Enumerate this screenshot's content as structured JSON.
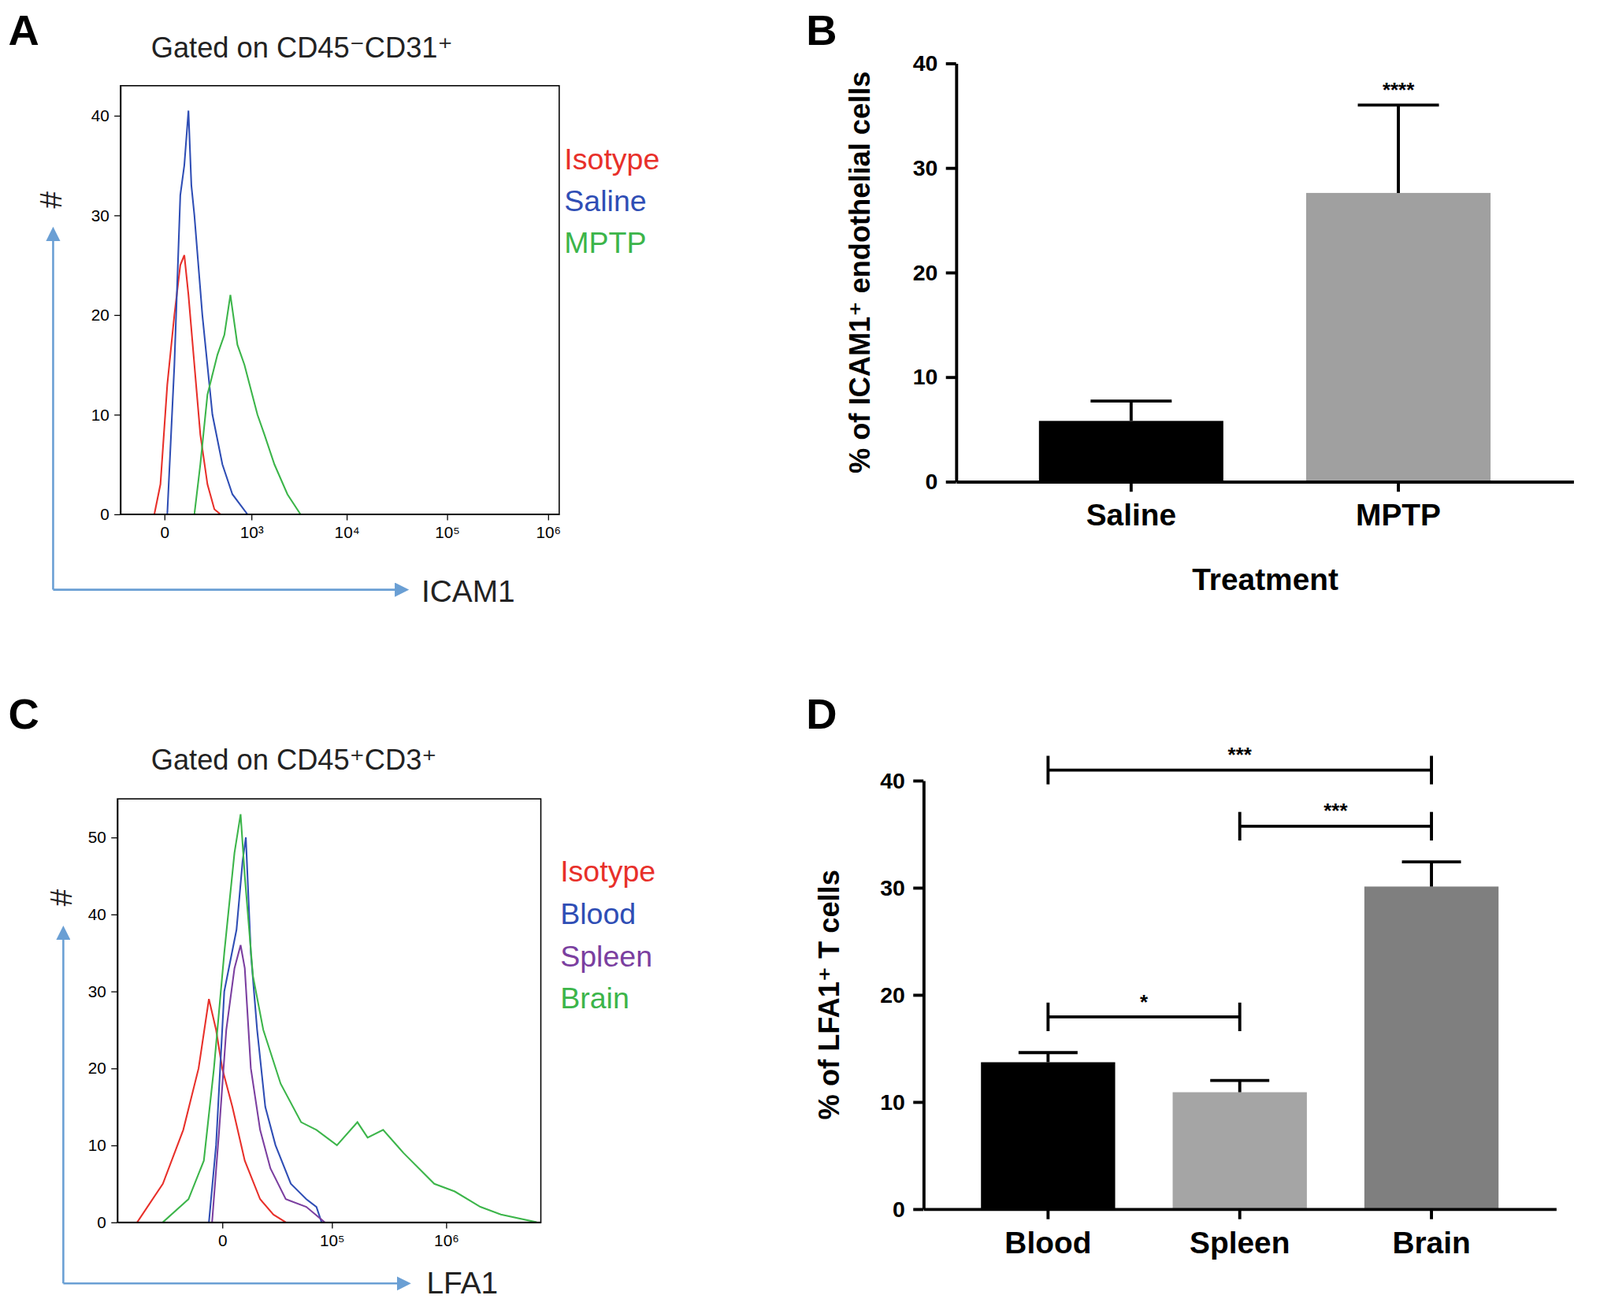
{
  "chart_data": [
    {
      "type": "line",
      "annotations": [
        "A"
      ],
      "title": "Gated on CD45⁻CD31⁺",
      "xlabel": "ICAM1",
      "ylabel": "#",
      "log": "x",
      "legend": "right",
      "xlim": [
        -275,
        1290000
      ],
      "ylim": [
        0,
        43
      ],
      "xticks": [
        0,
        {
          "value": 1000,
          "label": "10³"
        },
        {
          "value": 10000,
          "label": "10⁴"
        },
        {
          "value": 100000,
          "label": "10⁵"
        },
        {
          "value": 1000000,
          "label": "10⁶"
        }
      ],
      "yticks": [
        0,
        10,
        20,
        30,
        40
      ],
      "series": [
        {
          "name": "Isotype",
          "color": "#e8302a",
          "x": [
            -41,
            -15,
            11,
            41,
            70,
            92,
            117,
            157,
            203,
            267,
            340,
            413
          ],
          "values": [
            0,
            3,
            13,
            20,
            25,
            26,
            22,
            15,
            8,
            3,
            0.5,
            0
          ]
        },
        {
          "name": "Saline",
          "color": "#2f4eb5",
          "x": [
            11,
            41,
            70,
            92,
            117,
            136,
            157,
            220,
            318,
            440,
            594,
            901
          ],
          "values": [
            0,
            15,
            32,
            35,
            40.5,
            33,
            30,
            20,
            10,
            5,
            2,
            0
          ]
        },
        {
          "name": "MPTP",
          "color": "#3cb54a",
          "x": [
            157,
            203,
            267,
            376,
            468,
            560,
            685,
            831,
            1173,
            1403,
            1803,
            2481,
            3392
          ],
          "values": [
            0,
            5,
            12,
            16,
            18,
            22,
            17,
            15,
            10,
            8,
            5,
            2,
            0
          ]
        }
      ]
    },
    {
      "type": "bar",
      "annotations": [
        "B"
      ],
      "categories": [
        "Saline",
        "MPTP"
      ],
      "values": [
        5.8,
        27.6
      ],
      "errors": [
        1.9,
        8.4
      ],
      "colors": [
        "#000000",
        "#a0a0a0"
      ],
      "xlabel": "Treatment",
      "ylabel": "% of ICAM1⁺ endothelial cells",
      "ylim": [
        0,
        40
      ],
      "yticks": [
        0,
        10,
        20,
        30,
        40
      ],
      "significance": [
        {
          "category": 1,
          "label": "****"
        }
      ]
    },
    {
      "type": "line",
      "annotations": [
        "C"
      ],
      "title": "Gated on CD45⁺CD3⁺",
      "xlabel": "LFA1",
      "ylabel": "#",
      "log": "x",
      "legend": "right",
      "xlim": [
        -90000,
        6200000
      ],
      "ylim": [
        0,
        55
      ],
      "xticks": [
        0,
        {
          "value": 100000,
          "label": "10⁵"
        },
        {
          "value": 1000000,
          "label": "10⁶"
        }
      ],
      "yticks": [
        0,
        10,
        20,
        30,
        40,
        50
      ],
      "series": [
        {
          "name": "Isotype",
          "color": "#e8302a",
          "x": [
            -57200,
            -29600,
            -15500,
            -8000,
            -4060,
            -1750,
            0,
            3000,
            7550,
            14900,
            23300,
            33200
          ],
          "values": [
            0,
            5,
            12,
            20,
            29,
            25,
            20,
            15,
            8,
            3,
            1,
            0
          ]
        },
        {
          "name": "Blood",
          "color": "#2f4eb5",
          "x": [
            -4060,
            -1750,
            560,
            4400,
            6700,
            8000,
            10200,
            13300,
            17900,
            24800,
            38000,
            55900,
            70900,
            79700
          ],
          "values": [
            0,
            10,
            30,
            38,
            47,
            50,
            35,
            25,
            15,
            10,
            5,
            3,
            2,
            0
          ]
        },
        {
          "name": "Spleen",
          "color": "#7b3fa0",
          "x": [
            -3000,
            -840,
            1130,
            3700,
            5900,
            7550,
            10200,
            14900,
            21200,
            33200,
            55900,
            85400
          ],
          "values": [
            0,
            12,
            25,
            33,
            36,
            33,
            20,
            12,
            7,
            3,
            2,
            0
          ]
        },
        {
          "name": "Brain",
          "color": "#3cb54a",
          "x": [
            -29600,
            -12700,
            -5900,
            -2400,
            560,
            3700,
            5900,
            7550,
            11200,
            16700,
            28800,
            49300,
            70900,
            111700,
            172000,
            212000,
            290000,
            435000,
            589000,
            795000,
            1183000,
            1939000,
            2877000,
            5726000
          ],
          "values": [
            0,
            3,
            8,
            20,
            35,
            48,
            53,
            45,
            32,
            25,
            18,
            13,
            12,
            10,
            13,
            11,
            12,
            9,
            7,
            5,
            4,
            2,
            1,
            0
          ]
        }
      ]
    },
    {
      "type": "bar",
      "annotations": [
        "D"
      ],
      "categories": [
        "Blood",
        "Spleen",
        "Brain"
      ],
      "values": [
        13.7,
        10.9,
        30.1
      ],
      "errors": [
        0.9,
        1.1,
        2.3
      ],
      "colors": [
        "#000000",
        "#a5a5a5",
        "#7f7f7f"
      ],
      "ylabel": "% of LFA1⁺ T cells",
      "ylim": [
        0,
        40
      ],
      "yticks": [
        0,
        10,
        20,
        30,
        40
      ],
      "significance": [
        {
          "pair": [
            0,
            1
          ],
          "label": "*"
        },
        {
          "pair": [
            1,
            2
          ],
          "label": "***"
        },
        {
          "pair": [
            0,
            2
          ],
          "label": "***"
        }
      ]
    }
  ]
}
